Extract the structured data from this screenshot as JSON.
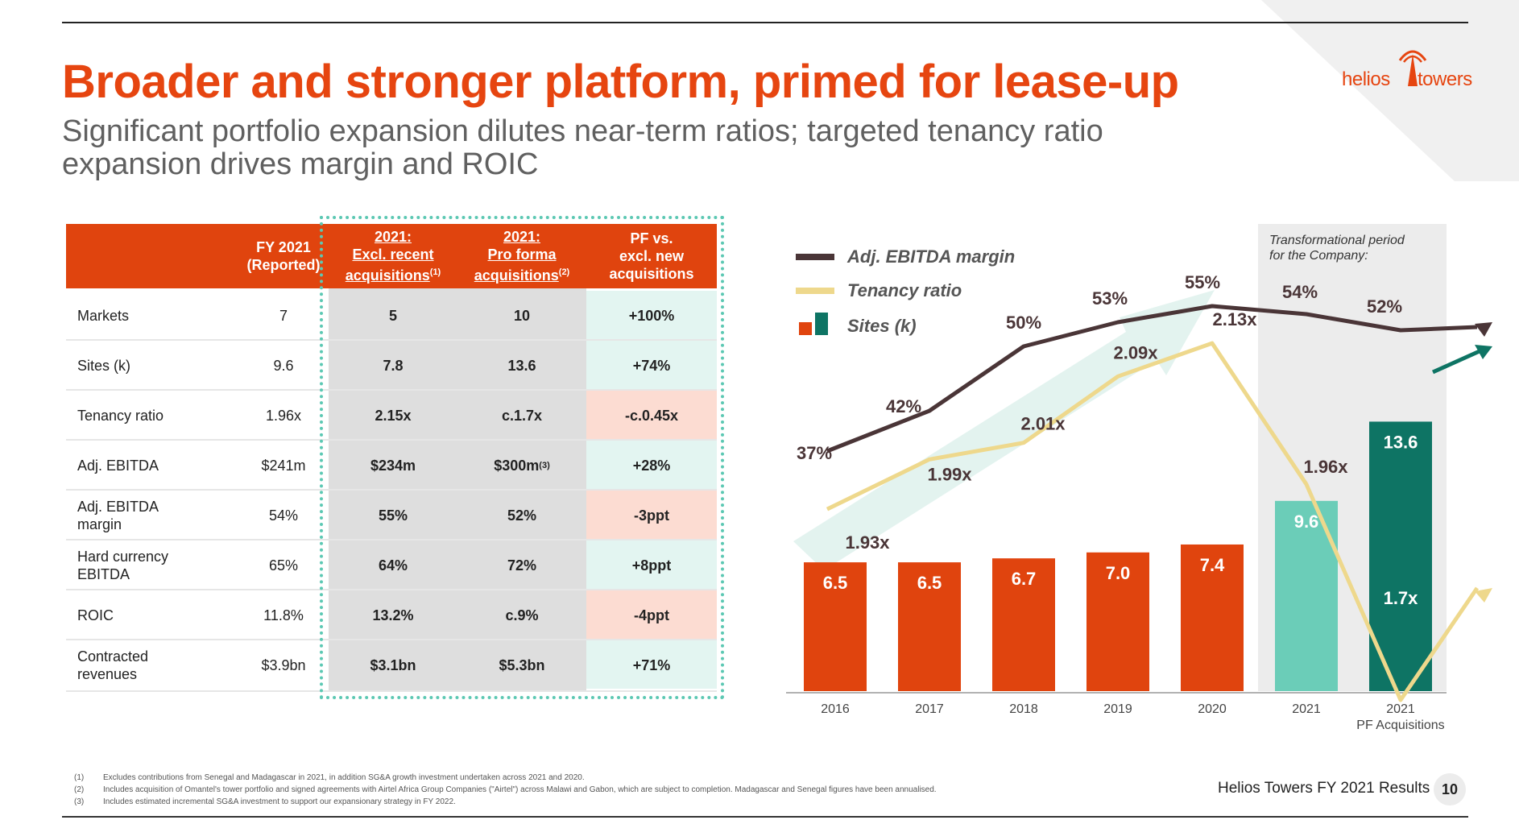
{
  "title": "Broader and stronger platform, primed for lease-up",
  "subtitle": "Significant portfolio expansion dilutes near-term ratios; targeted tenancy ratio expansion drives margin and ROIC",
  "logo": {
    "left": "helios",
    "right": "towers"
  },
  "table": {
    "headers": {
      "fy": [
        "FY 2021",
        "(Reported)"
      ],
      "excl": {
        "line1": "2021:",
        "line2": "Excl. recent",
        "line3": "acquisitions",
        "sup": "(1)"
      },
      "pro": {
        "line1": "2021:",
        "line2": "Pro forma",
        "line3": "acquisitions",
        "sup": "(2)"
      },
      "pf": [
        "PF vs.",
        "excl. new",
        "acquisitions"
      ]
    },
    "rows": [
      {
        "label": "Markets",
        "fy": "7",
        "excl": "5",
        "pro": "10",
        "pro_sup": "",
        "pf": "+100%",
        "tone": "pos"
      },
      {
        "label": "Sites (k)",
        "fy": "9.6",
        "excl": "7.8",
        "pro": "13.6",
        "pro_sup": "",
        "pf": "+74%",
        "tone": "pos"
      },
      {
        "label": "Tenancy ratio",
        "fy": "1.96x",
        "excl": "2.15x",
        "pro": "c.1.7x",
        "pro_sup": "",
        "pf": "-c.0.45x",
        "tone": "neg"
      },
      {
        "label": "Adj. EBITDA",
        "fy": "$241m",
        "excl": "$234m",
        "pro": "$300m",
        "pro_sup": "(3)",
        "pf": "+28%",
        "tone": "pos"
      },
      {
        "label": "Adj. EBITDA margin",
        "fy": "54%",
        "excl": "55%",
        "pro": "52%",
        "pro_sup": "",
        "pf": "-3ppt",
        "tone": "neg"
      },
      {
        "label": "Hard currency EBITDA",
        "fy": "65%",
        "excl": "64%",
        "pro": "72%",
        "pro_sup": "",
        "pf": "+8ppt",
        "tone": "pos"
      },
      {
        "label": "ROIC",
        "fy": "11.8%",
        "excl": "13.2%",
        "pro": "c.9%",
        "pro_sup": "",
        "pf": "-4ppt",
        "tone": "neg"
      },
      {
        "label": "Contracted revenues",
        "fy": "$3.9bn",
        "excl": "$3.1bn",
        "pro": "$5.3bn",
        "pro_sup": "",
        "pf": "+71%",
        "tone": "pos"
      }
    ]
  },
  "colors": {
    "orange": "#e0440e",
    "dark": "#4a3537",
    "tenancy": "#eed88c",
    "teal_light": "#6bcdb8",
    "teal_dark": "#0e7464",
    "arrow_bg": "#e3f3ef",
    "shade": "#ececec",
    "pos_bg": "#e3f5f1",
    "neg_bg": "#fcdcd2"
  },
  "chart_data": {
    "type": "bar",
    "categories": [
      "2016",
      "2017",
      "2018",
      "2019",
      "2020",
      "2021",
      "2021"
    ],
    "category_sublabels": [
      "",
      "",
      "",
      "",
      "",
      "",
      "PF Acquisitions"
    ],
    "bar_colors": [
      "orange",
      "orange",
      "orange",
      "orange",
      "orange",
      "teal_light",
      "teal_dark"
    ],
    "series": [
      {
        "name": "Sites (k)",
        "type": "bar",
        "values": [
          6.5,
          6.5,
          6.7,
          7.0,
          7.4,
          9.6,
          13.6
        ],
        "labels": [
          "6.5",
          "6.5",
          "6.7",
          "7.0",
          "7.4",
          "9.6",
          "13.6"
        ]
      },
      {
        "name": "Adj. EBITDA margin",
        "type": "line",
        "values": [
          37,
          42,
          50,
          53,
          55,
          54,
          52
        ],
        "labels": [
          "37%",
          "42%",
          "50%",
          "53%",
          "55%",
          "54%",
          "52%"
        ]
      },
      {
        "name": "Tenancy ratio",
        "type": "line",
        "values": [
          1.93,
          1.99,
          2.01,
          2.09,
          2.13,
          1.96,
          1.7
        ],
        "labels": [
          "1.93x",
          "1.99x",
          "2.01x",
          "2.09x",
          "2.13x",
          "1.96x",
          "1.7x"
        ]
      }
    ],
    "legend": [
      "Adj. EBITDA margin",
      "Tenancy ratio",
      "Sites (k)"
    ],
    "annotation": [
      "Transformational period",
      "for the Company:"
    ]
  },
  "footnotes": [
    {
      "num": "(1)",
      "text": "Excludes contributions from Senegal and Madagascar in 2021, in addition SG&A growth investment undertaken across 2021 and 2020."
    },
    {
      "num": "(2)",
      "text": "Includes acquisition of Omantel's tower portfolio and signed agreements with Airtel Africa Group Companies (\"Airtel\") across Malawi and Gabon, which are subject to completion. Madagascar and Senegal figures have been annualised."
    },
    {
      "num": "(3)",
      "text": "Includes estimated incremental SG&A investment to support our expansionary strategy in FY 2022."
    }
  ],
  "footer": {
    "text": "Helios Towers FY 2021 Results",
    "page": "10"
  }
}
